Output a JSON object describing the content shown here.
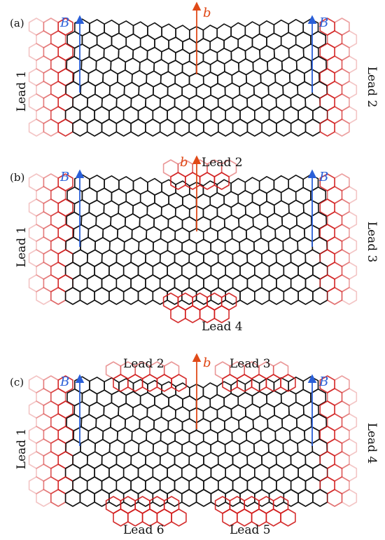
{
  "colors": {
    "lattice": "#111111",
    "lead": "#d01818",
    "field_B": "#2a5fd8",
    "field_b": "#e04a18"
  },
  "symbols": {
    "B": "B",
    "b": "b"
  },
  "panels": [
    {
      "label": "(a)",
      "leads": [
        {
          "label": "Lead 1",
          "side": "left"
        },
        {
          "label": "Lead 2",
          "side": "right"
        }
      ]
    },
    {
      "label": "(b)",
      "leads": [
        {
          "label": "Lead 1",
          "side": "left"
        },
        {
          "label": "Lead 2",
          "side": "top"
        },
        {
          "label": "Lead 3",
          "side": "right"
        },
        {
          "label": "Lead 4",
          "side": "bottom"
        }
      ]
    },
    {
      "label": "(c)",
      "leads": [
        {
          "label": "Lead 1",
          "side": "left"
        },
        {
          "label": "Lead 2",
          "side": "top-left"
        },
        {
          "label": "Lead 3",
          "side": "top-right"
        },
        {
          "label": "Lead 4",
          "side": "right"
        },
        {
          "label": "Lead 5",
          "side": "bottom-right"
        },
        {
          "label": "Lead 6",
          "side": "bottom-left"
        }
      ]
    }
  ]
}
